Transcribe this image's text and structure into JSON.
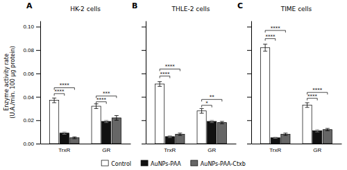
{
  "chart_data": [
    {
      "type": "bar",
      "title": "HK-2 cells",
      "panel_label": "A",
      "y_label": "Enzyme activity rate\n(U.A./min. 100 µg protein)",
      "categories": [
        "TrxR",
        "GR"
      ],
      "series": [
        {
          "name": "Control",
          "color": "white",
          "values": [
            0.037,
            0.032
          ],
          "errors": [
            0.002,
            0.002
          ]
        },
        {
          "name": "AuNPs-PAA",
          "color": "#111111",
          "values": [
            0.009,
            0.019
          ],
          "errors": [
            0.001,
            0.001
          ]
        },
        {
          "name": "AuNPs-PAA-Ctxb",
          "color": "#666666",
          "values": [
            0.005,
            0.022
          ],
          "errors": [
            0.0008,
            0.002
          ]
        }
      ],
      "ylim": [
        0,
        0.105
      ],
      "yticks": [
        {
          "value": 0,
          "label": "0.00"
        },
        0.02,
        0.04,
        0.06,
        0.08,
        {
          "value": 0.1,
          "label": "0.10"
        }
      ],
      "legend": "bottom",
      "annotations": [
        {
          "text": "****",
          "y": 0.046,
          "category": "TrxR",
          "from": "Control",
          "to": "AuNPs-PAA-Ctxb"
        },
        {
          "text": "****",
          "y": 0.041,
          "category": "TrxR",
          "from": "Control",
          "to": "AuNPs-PAA"
        },
        {
          "text": "***",
          "y": 0.039,
          "category": "GR",
          "from": "Control",
          "to": "AuNPs-PAA-Ctxb"
        },
        {
          "text": "****",
          "y": 0.034,
          "category": "GR",
          "from": "Control",
          "to": "AuNPs-PAA"
        }
      ]
    },
    {
      "type": "bar",
      "title": "THLE-2 cells",
      "panel_label": "B",
      "categories": [
        "TrxR",
        "GR"
      ],
      "series": [
        {
          "name": "Control",
          "color": "white",
          "values": [
            0.051,
            0.028
          ],
          "errors": [
            0.002,
            0.002
          ]
        },
        {
          "name": "AuNPs-PAA",
          "color": "#111111",
          "values": [
            0.006,
            0.019
          ],
          "errors": [
            0.0008,
            0.001
          ]
        },
        {
          "name": "AuNPs-PAA-Ctxb",
          "color": "#666666",
          "values": [
            0.008,
            0.018
          ],
          "errors": [
            0.001,
            0.001
          ]
        }
      ],
      "ylim": [
        0,
        0.105
      ],
      "yticks": [
        0,
        0.02,
        0.04,
        0.06,
        0.08,
        0.1
      ],
      "tick_labels": "x",
      "annotations": [
        {
          "text": "****",
          "y": 0.062,
          "category": "TrxR",
          "from": "Control",
          "to": "AuNPs-PAA-Ctxb"
        },
        {
          "text": "****",
          "y": 0.056,
          "category": "TrxR",
          "from": "Control",
          "to": "AuNPs-PAA"
        },
        {
          "text": "**",
          "y": 0.036,
          "category": "GR",
          "from": "Control",
          "to": "AuNPs-PAA-Ctxb"
        },
        {
          "text": "*",
          "y": 0.031,
          "category": "GR",
          "from": "Control",
          "to": "AuNPs-PAA"
        }
      ]
    },
    {
      "type": "bar",
      "title": "TIME cells",
      "panel_label": "C",
      "categories": [
        "TrxR",
        "GR"
      ],
      "series": [
        {
          "name": "Control",
          "color": "white",
          "values": [
            0.082,
            0.033
          ],
          "errors": [
            0.003,
            0.002
          ]
        },
        {
          "name": "AuNPs-PAA",
          "color": "#111111",
          "values": [
            0.005,
            0.011
          ],
          "errors": [
            0.0005,
            0.001
          ]
        },
        {
          "name": "AuNPs-PAA-Ctxb",
          "color": "#666666",
          "values": [
            0.008,
            0.012
          ],
          "errors": [
            0.001,
            0.001
          ]
        }
      ],
      "ylim": [
        0,
        0.105
      ],
      "yticks": [
        0,
        0.02,
        0.04,
        0.06,
        0.08,
        0.1
      ],
      "tick_labels": "x",
      "annotations": [
        {
          "text": "****",
          "y": 0.095,
          "category": "TrxR",
          "from": "Control",
          "to": "AuNPs-PAA-Ctxb"
        },
        {
          "text": "****",
          "y": 0.088,
          "category": "TrxR",
          "from": "Control",
          "to": "AuNPs-PAA"
        },
        {
          "text": "****",
          "y": 0.042,
          "category": "GR",
          "from": "Control",
          "to": "AuNPs-PAA-Ctxb"
        },
        {
          "text": "****",
          "y": 0.037,
          "category": "GR",
          "from": "Control",
          "to": "AuNPs-PAA"
        }
      ]
    }
  ]
}
